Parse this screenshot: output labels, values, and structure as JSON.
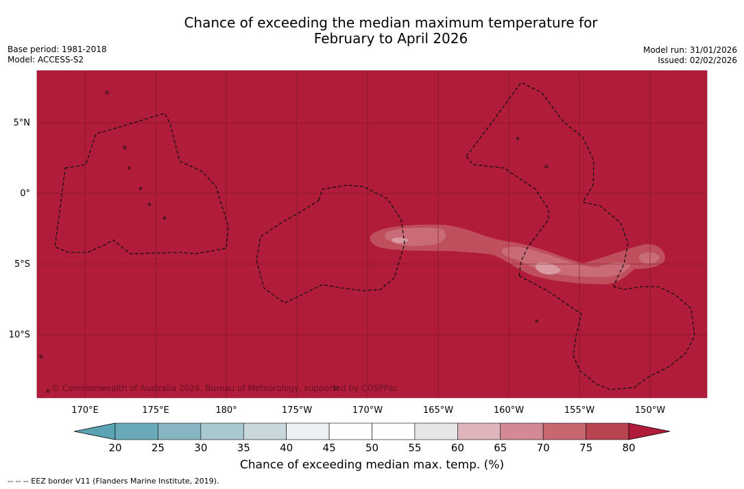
{
  "title_line1": "Chance of exceeding the median maximum temperature for",
  "title_line2": "February to April 2026",
  "base_period": "Base period: 1981-2018",
  "model": "Model: ACCESS-S2",
  "model_run": "Model run: 31/01/2026",
  "issued": "Issued: 02/02/2026",
  "copyright": "© Commonwealth of Australia 2026, Bureau of Meteorology, supported by COSPPac",
  "lon_labels": [
    "170°E",
    "175°E",
    "180°",
    "175°W",
    "170°W",
    "165°W",
    "160°W",
    "155°W",
    "150°W"
  ],
  "lat_labels": [
    "5°N",
    "0°",
    "5°S",
    "10°S"
  ],
  "colorbar": {
    "ticks": [
      "20",
      "25",
      "30",
      "35",
      "40",
      "45",
      "50",
      "55",
      "60",
      "65",
      "70",
      "75",
      "80"
    ],
    "colors": [
      "#6aa9b9",
      "#87b6c2",
      "#a8c9cd",
      "#c8d8dc",
      "#ebf0f2",
      "#ffffff",
      "#ffffff",
      "#e6e6e6",
      "#deb5ba",
      "#d48a94",
      "#c76770",
      "#b84452"
    ],
    "under_color": "#5aa3b3",
    "over_color": "#b01c3a",
    "label": "Chance of exceeding median max. temp. (%)"
  },
  "map_colors": {
    "base": "#b01c3a",
    "c75": "#c04f5e",
    "c70": "#c96c77",
    "c65": "#d99aa2"
  },
  "footer": "--  --  -- EEZ border V11 (Flanders Marine Institute, 2019)."
}
